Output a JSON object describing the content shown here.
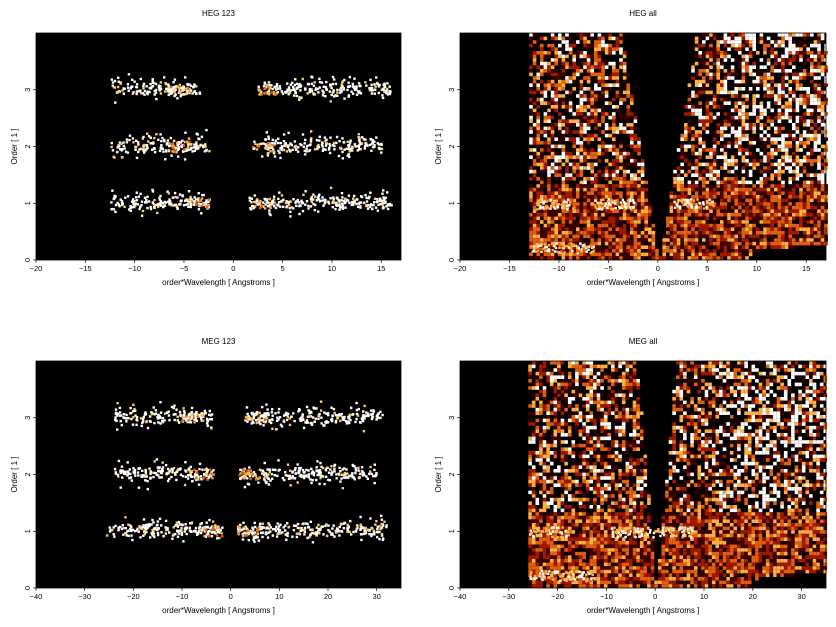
{
  "chart_data": [
    {
      "type": "heatmap",
      "title": "HEG 123",
      "xlabel": "order*Wavelength [ Angstroms ]",
      "ylabel": "Order [ 1 ]",
      "xlim": [
        -20,
        17
      ],
      "ylim": [
        0,
        4
      ],
      "xticks": [
        -20,
        -15,
        -10,
        -5,
        0,
        5,
        10,
        15
      ],
      "yticks": [
        0,
        1,
        2,
        3
      ],
      "background": "#000000",
      "colormap": [
        "#3a0000",
        "#a01800",
        "#e06010",
        "#ffb040",
        "#ffffff"
      ],
      "bands": [
        {
          "order": 1,
          "x_ranges": [
            [
              -12.5,
              -2.5
            ],
            [
              1.5,
              16
            ]
          ],
          "bright_at": [
            -3.5,
            3.0
          ]
        },
        {
          "order": 2,
          "x_ranges": [
            [
              -12.5,
              -2.5
            ],
            [
              2.5,
              15
            ]
          ],
          "bright_at": [
            -5.5,
            3.0
          ]
        },
        {
          "order": 3,
          "x_ranges": [
            [
              -12.5,
              -3.5
            ],
            [
              3.0,
              16
            ]
          ],
          "bright_at": [
            -5.5,
            3.5
          ]
        }
      ]
    },
    {
      "type": "heatmap",
      "title": "HEG all",
      "xlabel": "order*Wavelength [ Angstroms ]",
      "ylabel": "Order [ 1 ]",
      "xlim": [
        -20,
        17
      ],
      "ylim": [
        0,
        4
      ],
      "xticks": [
        -20,
        -15,
        -10,
        -5,
        0,
        5,
        10,
        15
      ],
      "yticks": [
        0,
        1,
        2,
        3
      ],
      "background": "#000000",
      "colormap": [
        "#3a0000",
        "#a01800",
        "#e06010",
        "#ffb040",
        "#ffffff"
      ],
      "data_region_x": [
        -13,
        17
      ],
      "gap_top_x": [
        -3.8,
        3.8
      ],
      "bright_features": [
        -10.5,
        -4.5,
        3.5
      ]
    },
    {
      "type": "heatmap",
      "title": "MEG 123",
      "xlabel": "order*Wavelength [ Angstroms ]",
      "ylabel": "Order [ 1 ]",
      "xlim": [
        -40,
        35
      ],
      "ylim": [
        0,
        4
      ],
      "xticks": [
        -40,
        -30,
        -20,
        -10,
        0,
        10,
        20,
        30
      ],
      "yticks": [
        0,
        1,
        2,
        3
      ],
      "background": "#000000",
      "colormap": [
        "#3a0000",
        "#a01800",
        "#e06010",
        "#ffb040",
        "#ffffff"
      ],
      "bands": [
        {
          "order": 1,
          "x_ranges": [
            [
              -26,
              -2
            ],
            [
              1,
              32
            ]
          ],
          "bright_at": [
            -4,
            3.5
          ]
        },
        {
          "order": 2,
          "x_ranges": [
            [
              -24,
              -4
            ],
            [
              2,
              30
            ]
          ],
          "bright_at": [
            -6,
            3.5
          ]
        },
        {
          "order": 3,
          "x_ranges": [
            [
              -24,
              -4
            ],
            [
              3,
              31
            ]
          ],
          "bright_at": [
            -8,
            5
          ]
        }
      ]
    },
    {
      "type": "heatmap",
      "title": "MEG all",
      "xlabel": "order*Wavelength [ Angstroms ]",
      "ylabel": "Order [ 1 ]",
      "xlim": [
        -40,
        35
      ],
      "ylim": [
        0,
        4
      ],
      "xticks": [
        -40,
        -30,
        -20,
        -10,
        0,
        10,
        20,
        30
      ],
      "yticks": [
        0,
        1,
        2,
        3
      ],
      "background": "#000000",
      "colormap": [
        "#3a0000",
        "#a01800",
        "#e06010",
        "#ffb040",
        "#ffffff"
      ],
      "data_region_x": [
        -26,
        35
      ],
      "gap_top_x": [
        -4,
        4
      ],
      "bright_features": [
        -22,
        -5,
        3.5
      ]
    }
  ]
}
